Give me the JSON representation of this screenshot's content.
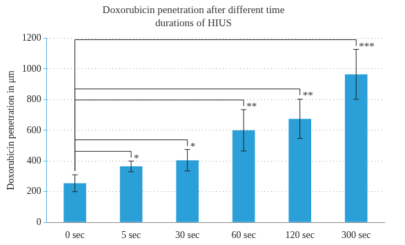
{
  "chart_data": {
    "type": "bar",
    "title": "Doxorubicin penetration after different time durations of HIUS",
    "y_label": "Doxorubicin penetration in μm",
    "categories": [
      "0 sec",
      "5 sec",
      "30 sec",
      "60 sec",
      "120 sec",
      "300 sec"
    ],
    "values": [
      255,
      365,
      405,
      600,
      675,
      965
    ],
    "errors": [
      55,
      35,
      70,
      135,
      128,
      163
    ],
    "color": "#2a9fd8",
    "ylim": [
      0,
      1200
    ],
    "yticks": [
      0,
      200,
      400,
      600,
      800,
      1000,
      1200
    ],
    "grid": true,
    "comparisons": [
      {
        "from": "0 sec",
        "to": "5 sec",
        "label": "*"
      },
      {
        "from": "0 sec",
        "to": "30 sec",
        "label": "*"
      },
      {
        "from": "0 sec",
        "to": "60 sec",
        "label": "**"
      },
      {
        "from": "0 sec",
        "to": "120 sec",
        "label": "**"
      },
      {
        "from": "0 sec",
        "to": "300 sec",
        "label": "***"
      }
    ]
  }
}
